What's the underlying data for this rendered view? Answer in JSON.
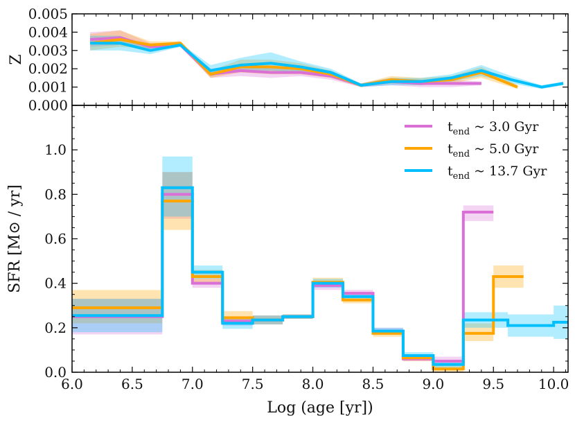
{
  "chart_data": [
    {
      "type": "line",
      "panel": "top",
      "ylabel": "Z",
      "xlim": [
        6.0,
        10.12
      ],
      "ylim": [
        0.0,
        0.005
      ],
      "yticks": [
        "0.000",
        "0.001",
        "0.002",
        "0.003",
        "0.004",
        "0.005"
      ],
      "ytick_values": [
        0.0,
        0.001,
        0.002,
        0.003,
        0.004,
        0.005
      ],
      "series": [
        {
          "name": "t_end ~ 3.0 Gyr",
          "color": "#DA70D6",
          "band_color": "#DA70D6",
          "x": [
            6.15,
            6.4,
            6.65,
            6.9,
            7.15,
            7.4,
            7.65,
            7.9,
            8.15,
            8.4,
            8.65,
            8.9,
            9.15,
            9.4
          ],
          "y": [
            0.0036,
            0.0037,
            0.0032,
            0.0033,
            0.0017,
            0.0019,
            0.0018,
            0.0018,
            0.0016,
            0.0011,
            0.0013,
            0.0012,
            0.0012,
            0.0012
          ],
          "lower": [
            0.0032,
            0.0033,
            0.003,
            0.0032,
            0.0015,
            0.0016,
            0.0015,
            0.0016,
            0.0014,
            0.001,
            0.0011,
            0.001,
            0.001,
            0.0011
          ],
          "upper": [
            0.004,
            0.0041,
            0.0034,
            0.0034,
            0.002,
            0.0022,
            0.0021,
            0.002,
            0.0018,
            0.0012,
            0.0015,
            0.0014,
            0.0014,
            0.0013
          ]
        },
        {
          "name": "t_end ~ 5.0 Gyr",
          "color": "#FFA500",
          "band_color": "#FFA500",
          "x": [
            6.15,
            6.4,
            6.65,
            6.9,
            7.15,
            7.4,
            7.65,
            7.9,
            8.15,
            8.4,
            8.65,
            8.9,
            9.15,
            9.4,
            9.7
          ],
          "y": [
            0.0034,
            0.0036,
            0.0033,
            0.0034,
            0.0017,
            0.0021,
            0.0021,
            0.002,
            0.0017,
            0.0011,
            0.0014,
            0.0013,
            0.0014,
            0.0018,
            0.001
          ],
          "lower": [
            0.003,
            0.0032,
            0.0031,
            0.0033,
            0.0015,
            0.0018,
            0.0017,
            0.0017,
            0.0015,
            0.001,
            0.0012,
            0.0011,
            0.0012,
            0.0015,
            0.0009
          ],
          "upper": [
            0.0039,
            0.0041,
            0.0035,
            0.0035,
            0.0019,
            0.0025,
            0.0025,
            0.0023,
            0.0019,
            0.0012,
            0.0016,
            0.0015,
            0.0016,
            0.0021,
            0.0011
          ]
        },
        {
          "name": "t_end ~ 13.7 Gyr",
          "color": "#00BFFF",
          "band_color": "#00BFFF",
          "x": [
            6.15,
            6.4,
            6.65,
            6.9,
            7.15,
            7.4,
            7.65,
            7.9,
            8.15,
            8.4,
            8.65,
            8.9,
            9.15,
            9.4,
            9.65,
            9.9,
            10.08
          ],
          "y": [
            0.0034,
            0.0034,
            0.003,
            0.0033,
            0.0019,
            0.0022,
            0.0023,
            0.0021,
            0.0018,
            0.0011,
            0.0013,
            0.0013,
            0.0015,
            0.0019,
            0.0014,
            0.001,
            0.0012
          ],
          "lower": [
            0.003,
            0.003,
            0.0028,
            0.0032,
            0.0016,
            0.0019,
            0.0019,
            0.0018,
            0.0016,
            0.001,
            0.0011,
            0.0011,
            0.0013,
            0.0016,
            0.0012,
            0.0009,
            0.0011
          ],
          "upper": [
            0.0038,
            0.0038,
            0.0032,
            0.0034,
            0.0022,
            0.0026,
            0.0029,
            0.0024,
            0.002,
            0.0012,
            0.0015,
            0.0015,
            0.0017,
            0.0022,
            0.0016,
            0.0011,
            0.0013
          ]
        }
      ]
    },
    {
      "type": "line",
      "panel": "bottom",
      "drawstyle": "steps",
      "xlabel": "Log (age [yr])",
      "ylabel": "SFR [M⊙ / yr]",
      "xlim": [
        6.0,
        10.12
      ],
      "ylim": [
        0.0,
        1.2
      ],
      "xticks": [
        "6.0",
        "6.5",
        "7.0",
        "7.5",
        "8.0",
        "8.5",
        "9.0",
        "9.5",
        "10.0"
      ],
      "xtick_values": [
        6.0,
        6.5,
        7.0,
        7.5,
        8.0,
        8.5,
        9.0,
        9.5,
        10.0
      ],
      "yticks": [
        "0.0",
        "0.2",
        "0.4",
        "0.6",
        "0.8",
        "1.0"
      ],
      "ytick_values": [
        0.0,
        0.2,
        0.4,
        0.6,
        0.8,
        1.0
      ],
      "legend": "top-right",
      "series": [
        {
          "name": "t_end ~ 3.0 Gyr",
          "color": "#DA70D6",
          "bin_edges": [
            6.0,
            6.75,
            7.0,
            7.25,
            7.5,
            7.75,
            8.0,
            8.25,
            8.5,
            8.75,
            9.0,
            9.25,
            9.5
          ],
          "values": [
            0.25,
            0.8,
            0.4,
            0.23,
            0.235,
            0.25,
            0.39,
            0.355,
            0.185,
            0.06,
            0.05,
            0.72
          ],
          "lower": [
            0.17,
            0.69,
            0.38,
            0.21,
            0.215,
            0.24,
            0.37,
            0.335,
            0.17,
            0.05,
            0.03,
            0.68
          ],
          "upper": [
            0.33,
            0.9,
            0.42,
            0.25,
            0.255,
            0.26,
            0.41,
            0.37,
            0.2,
            0.075,
            0.07,
            0.75
          ]
        },
        {
          "name": "t_end ~ 5.0 Gyr",
          "color": "#FFA500",
          "bin_edges": [
            6.0,
            6.75,
            7.0,
            7.25,
            7.5,
            7.75,
            8.0,
            8.25,
            8.5,
            8.75,
            9.0,
            9.25,
            9.5,
            9.75
          ],
          "values": [
            0.29,
            0.77,
            0.43,
            0.245,
            0.235,
            0.25,
            0.405,
            0.325,
            0.175,
            0.065,
            0.015,
            0.175,
            0.43
          ],
          "lower": [
            0.22,
            0.64,
            0.4,
            0.22,
            0.215,
            0.24,
            0.385,
            0.31,
            0.16,
            0.05,
            0.0,
            0.14,
            0.38
          ],
          "upper": [
            0.37,
            0.9,
            0.46,
            0.275,
            0.255,
            0.26,
            0.425,
            0.345,
            0.19,
            0.08,
            0.03,
            0.22,
            0.48
          ]
        },
        {
          "name": "t_end ~ 13.7 Gyr",
          "color": "#00BFFF",
          "bin_edges": [
            6.0,
            6.75,
            7.0,
            7.25,
            7.5,
            7.75,
            8.0,
            8.25,
            8.5,
            8.75,
            9.0,
            9.25,
            9.62,
            10.0,
            10.12
          ],
          "values": [
            0.255,
            0.83,
            0.45,
            0.22,
            0.235,
            0.25,
            0.4,
            0.34,
            0.185,
            0.075,
            0.035,
            0.235,
            0.21,
            0.225
          ],
          "lower": [
            0.18,
            0.7,
            0.42,
            0.195,
            0.215,
            0.24,
            0.38,
            0.32,
            0.17,
            0.06,
            0.02,
            0.2,
            0.16,
            0.15
          ],
          "upper": [
            0.33,
            0.97,
            0.48,
            0.245,
            0.255,
            0.26,
            0.42,
            0.36,
            0.2,
            0.09,
            0.05,
            0.27,
            0.26,
            0.3
          ]
        }
      ]
    }
  ],
  "legend": [
    {
      "main": "t",
      "sub": "end",
      "rest": " ~  3.0 Gyr",
      "color": "#DA70D6"
    },
    {
      "main": "t",
      "sub": "end",
      "rest": " ~  5.0 Gyr",
      "color": "#FFA500"
    },
    {
      "main": "t",
      "sub": "end",
      "rest": " ~ 13.7 Gyr",
      "color": "#00BFFF"
    }
  ]
}
